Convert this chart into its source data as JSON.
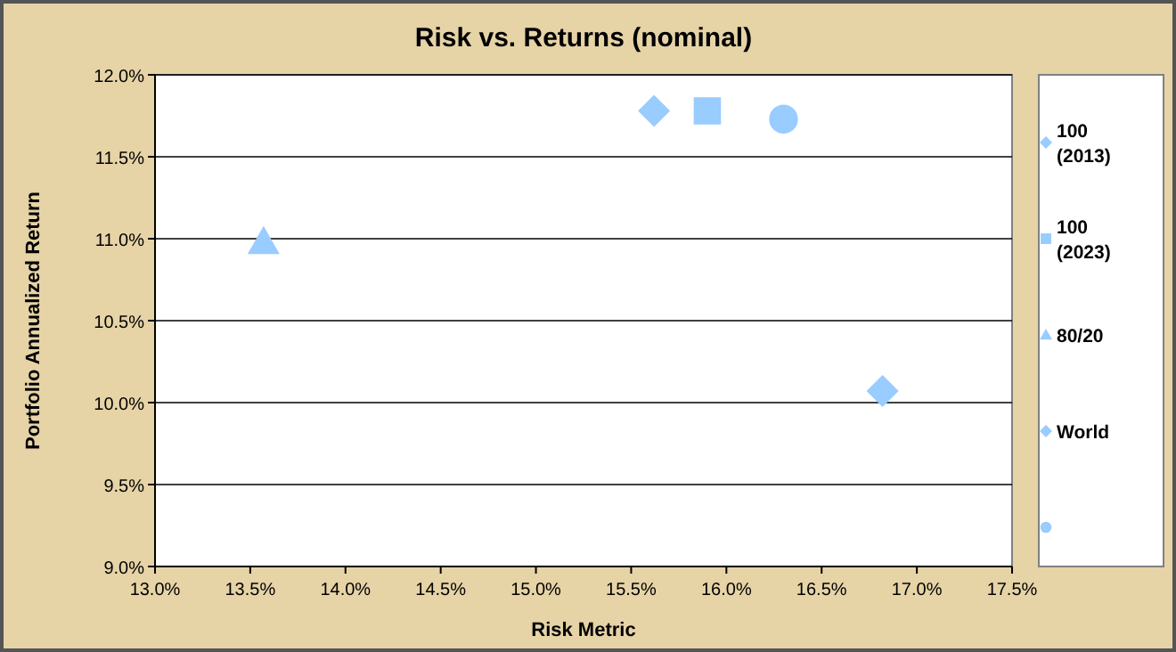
{
  "chart_data": {
    "type": "scatter",
    "title": "Risk vs. Returns (nominal)",
    "xlabel": "Risk Metric",
    "ylabel": "Portfolio Annualized Return",
    "xlim": [
      0.13,
      0.175
    ],
    "xticks": [
      {
        "value": 0.13,
        "label": "13.0%"
      },
      {
        "value": 0.135,
        "label": "13.5%"
      },
      {
        "value": 0.14,
        "label": "14.0%"
      },
      {
        "value": 0.145,
        "label": "14.5%"
      },
      {
        "value": 0.15,
        "label": "15.0%"
      },
      {
        "value": 0.155,
        "label": "15.5%"
      },
      {
        "value": 0.16,
        "label": "16.0%"
      },
      {
        "value": 0.165,
        "label": "16.5%"
      },
      {
        "value": 0.17,
        "label": "17.0%"
      },
      {
        "value": 0.175,
        "label": "17.5%"
      }
    ],
    "ylim": [
      0.09,
      0.12
    ],
    "yticks": [
      {
        "value": 0.09,
        "label": "9.0%"
      },
      {
        "value": 0.095,
        "label": "9.5%"
      },
      {
        "value": 0.1,
        "label": "10.0%"
      },
      {
        "value": 0.105,
        "label": "10.5%"
      },
      {
        "value": 0.11,
        "label": "11.0%"
      },
      {
        "value": 0.115,
        "label": "11.5%"
      },
      {
        "value": 0.12,
        "label": "12.0%"
      }
    ],
    "grid": "y",
    "legend": "right",
    "series": [
      {
        "name": "100 (2013)",
        "color": "#99ccff",
        "marker": "diamond",
        "x": [
          0.1562
        ],
        "values": [
          0.1178
        ]
      },
      {
        "name": "100 (2023)",
        "color": "#99ccff",
        "marker": "square",
        "x": [
          0.159
        ],
        "values": [
          0.1178
        ]
      },
      {
        "name": "80/20",
        "color": "#99ccff",
        "marker": "triangle",
        "x": [
          0.1357
        ],
        "values": [
          0.1098
        ]
      },
      {
        "name": "World",
        "color": "#99ccff",
        "marker": "diamond",
        "x": [
          0.1682
        ],
        "values": [
          0.1007
        ]
      },
      {
        "color": "#99ccff",
        "marker": "circle",
        "x": [
          0.163
        ],
        "values": [
          0.1173
        ]
      }
    ]
  }
}
